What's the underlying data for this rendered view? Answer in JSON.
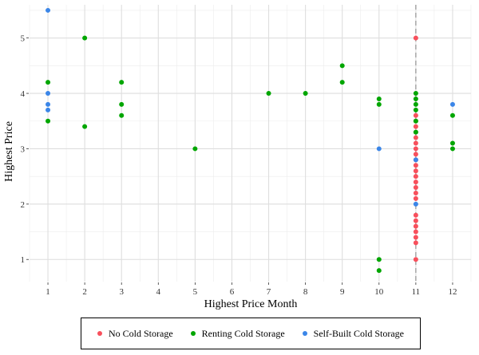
{
  "chart_data": {
    "type": "scatter",
    "xlabel": "Highest Price Month",
    "ylabel": "Highest Price",
    "xlim": [
      0.5,
      12.5
    ],
    "ylim": [
      0.6,
      5.6
    ],
    "xticks": [
      1,
      2,
      3,
      4,
      5,
      6,
      7,
      8,
      9,
      10,
      11,
      12
    ],
    "yticks": [
      1,
      2,
      3,
      4,
      5
    ],
    "grid": true,
    "vline": {
      "x": 11,
      "style": "dashed"
    },
    "legend_position": "bottom",
    "series": [
      {
        "name": "No Cold Storage",
        "color": "#F8505C",
        "points": [
          [
            11,
            5.0
          ],
          [
            11,
            3.6
          ],
          [
            11,
            3.5
          ],
          [
            11,
            3.4
          ],
          [
            11,
            3.3
          ],
          [
            11,
            3.2
          ],
          [
            11,
            3.1
          ],
          [
            11,
            3.0
          ],
          [
            11,
            2.9
          ],
          [
            11,
            2.8
          ],
          [
            11,
            2.7
          ],
          [
            11,
            2.6
          ],
          [
            11,
            2.5
          ],
          [
            11,
            2.4
          ],
          [
            11,
            2.3
          ],
          [
            11,
            2.2
          ],
          [
            11,
            2.1
          ],
          [
            11,
            1.8
          ],
          [
            11,
            1.7
          ],
          [
            11,
            1.6
          ],
          [
            11,
            1.5
          ],
          [
            11,
            1.4
          ],
          [
            11,
            1.3
          ],
          [
            11,
            1.0
          ]
        ]
      },
      {
        "name": "Renting Cold Storage",
        "color": "#00A600",
        "points": [
          [
            1,
            4.2
          ],
          [
            1,
            3.5
          ],
          [
            2,
            5.0
          ],
          [
            2,
            3.4
          ],
          [
            3,
            4.2
          ],
          [
            3,
            3.8
          ],
          [
            3,
            3.6
          ],
          [
            5,
            3.0
          ],
          [
            7,
            4.0
          ],
          [
            8,
            4.0
          ],
          [
            9,
            4.5
          ],
          [
            9,
            4.2
          ],
          [
            10,
            3.9
          ],
          [
            10,
            3.8
          ],
          [
            10,
            1.0
          ],
          [
            10,
            0.8
          ],
          [
            11,
            4.0
          ],
          [
            11,
            3.9
          ],
          [
            11,
            3.8
          ],
          [
            11,
            3.7
          ],
          [
            11,
            3.5
          ],
          [
            11,
            3.3
          ],
          [
            12,
            3.6
          ],
          [
            12,
            3.1
          ],
          [
            12,
            3.0
          ]
        ]
      },
      {
        "name": "Self-Built Cold Storage",
        "color": "#3B86E8",
        "points": [
          [
            1,
            5.5
          ],
          [
            1,
            4.0
          ],
          [
            1,
            3.8
          ],
          [
            1,
            3.7
          ],
          [
            10,
            3.0
          ],
          [
            11,
            2.8
          ],
          [
            11,
            2.0
          ],
          [
            12,
            3.8
          ]
        ]
      }
    ]
  }
}
